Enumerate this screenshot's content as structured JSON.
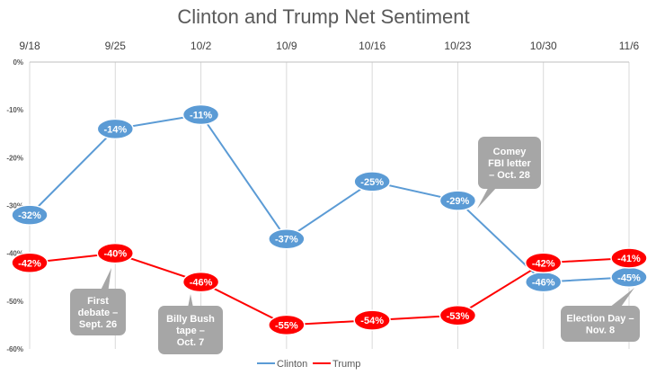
{
  "chart_data": {
    "type": "line",
    "title": "Clinton and Trump Net Sentiment",
    "categories": [
      "9/18",
      "9/25",
      "10/2",
      "10/9",
      "10/16",
      "10/23",
      "10/30",
      "11/6"
    ],
    "ylim": [
      -60,
      0
    ],
    "y_ticks": [
      "0%",
      "-10%",
      "-20%",
      "-30%",
      "-40%",
      "-50%",
      "-60%"
    ],
    "x_axis_position": "top",
    "grid": "vertical",
    "legend_position": "bottom",
    "series": [
      {
        "name": "Clinton",
        "color": "#5b9bd5",
        "x": [
          0,
          1,
          2,
          3,
          4,
          5,
          6,
          7
        ],
        "values": [
          -32,
          -14,
          -11,
          -37,
          -25,
          -29,
          -46,
          -45
        ],
        "labels": [
          "-32%",
          "-14%",
          "-11%",
          "-37%",
          "-25%",
          "-29%",
          "-46%",
          "-45%"
        ]
      },
      {
        "name": "Trump",
        "color": "#ff0000",
        "x": [
          0,
          1,
          2,
          3,
          4,
          5,
          6,
          7
        ],
        "values": [
          -42,
          -40,
          -46,
          -55,
          -54,
          -53,
          -42,
          -41
        ],
        "labels": [
          "-42%",
          "-40%",
          "-46%",
          "-55%",
          "-54%",
          "-53%",
          "-42%",
          "-41%"
        ]
      }
    ],
    "annotations": [
      {
        "text": [
          "First",
          "debate –",
          "Sept. 26"
        ],
        "series": 1,
        "point": 1
      },
      {
        "text": [
          "Billy Bush",
          "tape –",
          "Oct. 7"
        ],
        "series": 1,
        "point": 2
      },
      {
        "text": [
          "Comey",
          "FBI letter",
          "– Oct. 28"
        ],
        "series": 0,
        "point": 5
      },
      {
        "text": [
          "Election Day –",
          "Nov. 8"
        ],
        "series": 0,
        "point": 7
      }
    ]
  }
}
